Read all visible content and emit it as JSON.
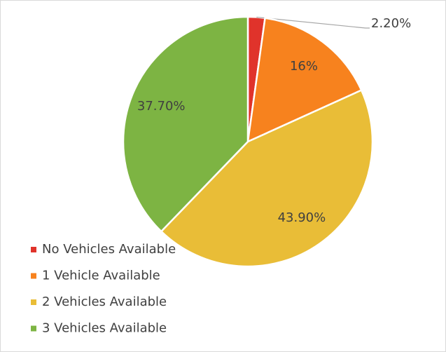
{
  "chart_data": {
    "type": "pie",
    "categories": [
      "No Vehicles Available",
      "1 Vehicle Available",
      "2 Vehicles Available",
      "3 Vehicles Available"
    ],
    "values": [
      2.2,
      16,
      43.9,
      37.7
    ],
    "value_labels": [
      "2.20%",
      "16%",
      "43.90%",
      "37.70%"
    ],
    "colors": [
      "#e0332b",
      "#f7821e",
      "#e9bd37",
      "#7db443"
    ],
    "legend": "bottom-left"
  }
}
